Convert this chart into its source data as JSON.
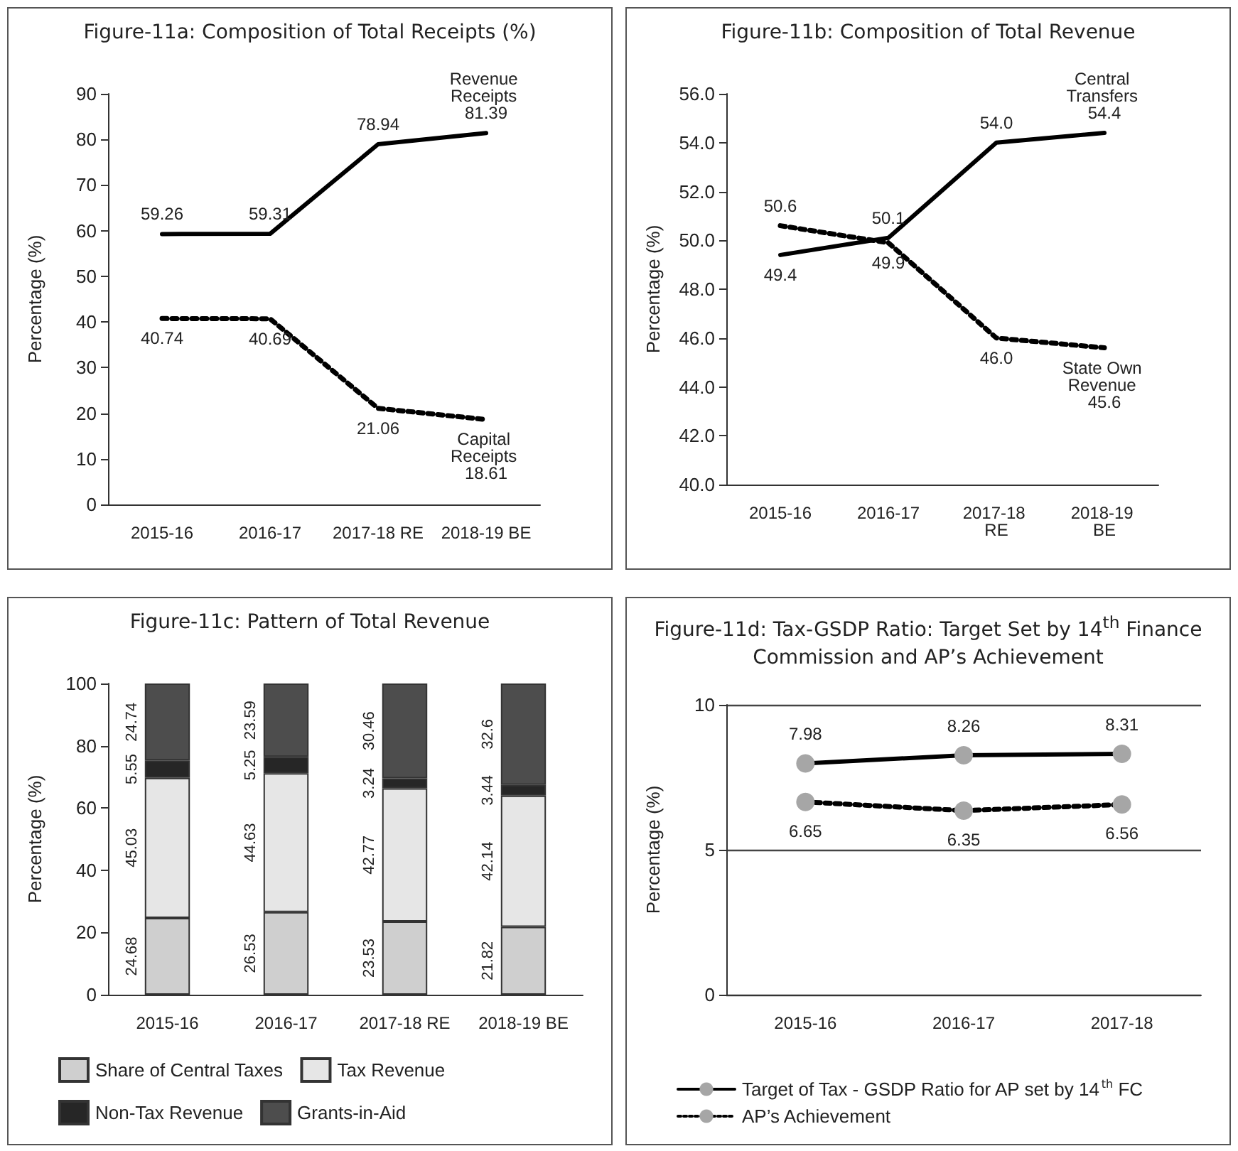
{
  "chart_data": [
    {
      "type": "line",
      "title": "Figure-11a: Composition of Total Receipts (%)",
      "ylabel": "Percentage (%)",
      "categories": [
        "2015-16",
        "2016-17",
        "2017-18 RE",
        "2018-19 BE"
      ],
      "series": [
        {
          "name": "Revenue Receipts",
          "color": "#000000",
          "line_style": "solid",
          "values": [
            59.26,
            59.31,
            78.94,
            81.39
          ]
        },
        {
          "name": "Capital Receipts",
          "color": "#000000",
          "line_style": "dotted",
          "values": [
            40.74,
            40.69,
            21.06,
            18.61
          ]
        }
      ],
      "ylim": [
        0,
        90
      ],
      "yticks": [
        0,
        10,
        20,
        30,
        40,
        50,
        60,
        70,
        80,
        90
      ],
      "data_labels": true,
      "marker": "none",
      "legend": false,
      "grid": false
    },
    {
      "type": "line",
      "title": "Figure-11b: Composition of Total Revenue",
      "ylabel": "Percentage (%)",
      "categories": [
        "2015-16",
        "2016-17",
        "2017-18 RE",
        "2018-19 BE"
      ],
      "series": [
        {
          "name": "Central Transfers",
          "color": "#000000",
          "line_style": "solid",
          "values": [
            49.4,
            50.1,
            54.0,
            54.4
          ],
          "value_labels": [
            "49.4",
            "50.1",
            "54.0",
            "54.4"
          ]
        },
        {
          "name": "State Own Revenue",
          "color": "#000000",
          "line_style": "dotted",
          "values": [
            50.6,
            49.9,
            46.0,
            45.6
          ],
          "value_labels": [
            "50.6",
            "49.9",
            "46.0",
            "45.6"
          ]
        }
      ],
      "ylim": [
        40,
        56
      ],
      "yticks": [
        {
          "value": 40,
          "label": "40.0"
        },
        {
          "value": 42,
          "label": "42.0"
        },
        {
          "value": 44,
          "label": "44.0"
        },
        {
          "value": 46,
          "label": "46.0"
        },
        {
          "value": 48,
          "label": "48.0"
        },
        {
          "value": 50,
          "label": "50.0"
        },
        {
          "value": 52,
          "label": "52.0"
        },
        {
          "value": 54,
          "label": "54.0"
        },
        {
          "value": 56,
          "label": "56.0"
        }
      ],
      "marker": "none",
      "legend": false,
      "grid": false
    },
    {
      "type": "bar",
      "stacked": true,
      "title": "Figure-11c: Pattern of Total Revenue",
      "ylabel": "Percentage (%)",
      "categories": [
        "2015-16",
        "2016-17",
        "2017-18 RE",
        "2018-19 BE"
      ],
      "series": [
        {
          "name": "Share of Central Taxes",
          "color": "#cfcfcf",
          "values": [
            24.68,
            26.53,
            23.53,
            21.82
          ]
        },
        {
          "name": "Tax Revenue",
          "color": "#e6e6e6",
          "values": [
            45.03,
            44.63,
            42.77,
            42.14
          ]
        },
        {
          "name": "Non-Tax Revenue",
          "color": "#262626",
          "values": [
            5.55,
            5.25,
            3.24,
            3.44
          ]
        },
        {
          "name": "Grants-in-Aid",
          "color": "#4d4d4d",
          "values": [
            24.74,
            23.59,
            30.46,
            32.6
          ]
        }
      ],
      "ylim": [
        0,
        100
      ],
      "yticks": [
        0,
        20,
        40,
        60,
        80,
        100
      ],
      "data_labels": true,
      "legend": "bottom",
      "grid": false
    },
    {
      "type": "line",
      "title": "Figure-11d: Tax-GSDP Ratio: Target Set by 14$^{th}$ Finance Commission and AP’s Achievement",
      "ylabel": "Percentage (%)",
      "categories": [
        "2015-16",
        "2016-17",
        "2017-18"
      ],
      "series": [
        {
          "name": "Target of Tax - GSDP Ratio for AP set by 14$^{th}$ FC",
          "color": "#000000",
          "line_style": "solid",
          "values": [
            7.98,
            8.26,
            8.31
          ]
        },
        {
          "name": "AP’s Achievement",
          "color": "#000000",
          "line_style": "dotted",
          "values": [
            6.65,
            6.35,
            6.56
          ]
        }
      ],
      "ylim": [
        0,
        10
      ],
      "yticks": [
        0,
        5,
        10
      ],
      "data_labels": true,
      "marker": "circle",
      "legend": "bottom",
      "grid": "y"
    }
  ]
}
